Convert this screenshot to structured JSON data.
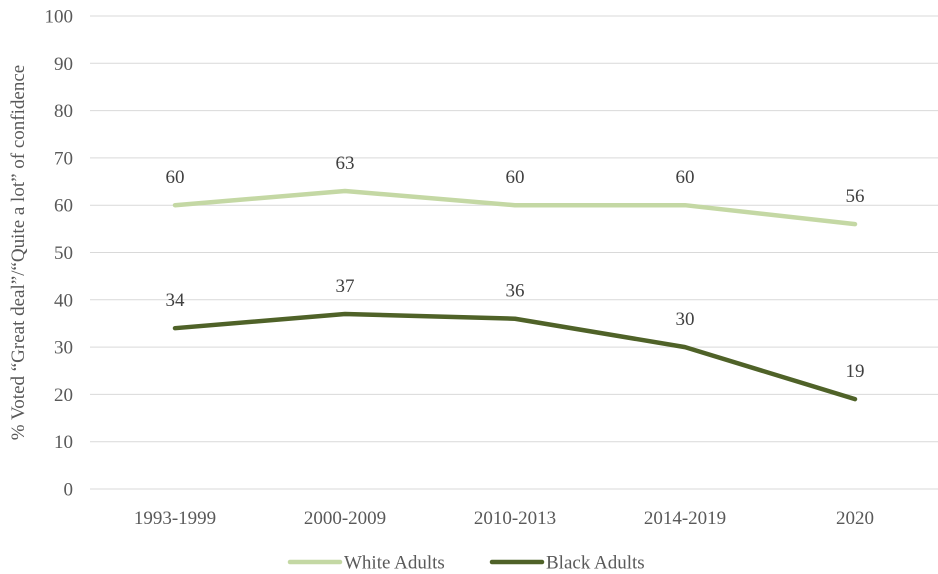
{
  "chart_data": {
    "type": "line",
    "categories": [
      "1993-1999",
      "2000-2009",
      "2010-2013",
      "2014-2019",
      "2020"
    ],
    "series": [
      {
        "name": "White Adults",
        "values": [
          60,
          63,
          60,
          60,
          56
        ],
        "color": "#c4d8a4"
      },
      {
        "name": "Black Adults",
        "values": [
          34,
          37,
          36,
          30,
          19
        ],
        "color": "#4f6228"
      }
    ],
    "ylabel": "% Voted “Great deal”/“Quite a lot” of confidence",
    "xlabel": "",
    "title": "",
    "ylim": [
      0,
      100
    ],
    "yticks": [
      0,
      10,
      20,
      30,
      40,
      50,
      60,
      70,
      80,
      90,
      100
    ],
    "grid": true,
    "legend_position": "bottom"
  }
}
